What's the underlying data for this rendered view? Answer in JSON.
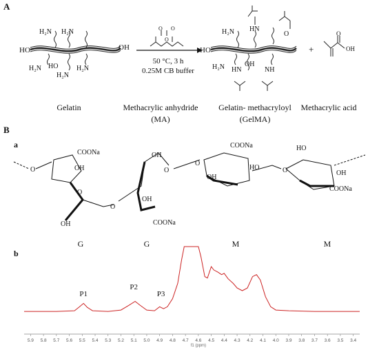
{
  "panel_a": {
    "label": "A",
    "reaction_conditions": [
      "50 °C, 3 h",
      "0.25M CB buffer"
    ],
    "plus_sign": "+",
    "gelatin_groups": {
      "ho_left": "HO",
      "oh_right": "OH",
      "ho_mid": "HO",
      "amine": "H₂N",
      "amine_b": "H₂N"
    },
    "gelma_groups": {
      "ho_left": "HO",
      "hn": "HN",
      "nh": "NH",
      "o": "O",
      "oh": "OH",
      "amine": "H₂N"
    },
    "captions": {
      "gelatin": "Gelatin",
      "ma_1": "Methacrylic anhydride",
      "ma_2": "(MA)",
      "gelma_1": "Gelatin- methacryloyl",
      "gelma_2": "(GelMA)",
      "acid": "Methacrylic acid"
    }
  },
  "panel_b": {
    "label": "B",
    "sub_a": "a",
    "sub_b": "b",
    "groups": {
      "coona": "COONa",
      "oh": "OH",
      "ho": "HO",
      "o": "O"
    },
    "residues": [
      "G",
      "G",
      "M",
      "M"
    ]
  },
  "chart_data": {
    "type": "line",
    "title": "",
    "xlabel": "f1 (ppm)",
    "ylabel": "",
    "x_reversed": true,
    "xlim": [
      5.95,
      3.35
    ],
    "ticks": [
      "5.9",
      "5.8",
      "5.7",
      "5.6",
      "5.5",
      "5.4",
      "5.3",
      "5.2",
      "5.1",
      "5.0",
      "4.9",
      "4.8",
      "4.7",
      "4.6",
      "4.5",
      "4.4",
      "4.3",
      "4.2",
      "4.1",
      "4.0",
      "3.9",
      "3.8",
      "3.7",
      "3.6",
      "3.5",
      "3.4"
    ],
    "peak_labels": [
      {
        "text": "P1",
        "ppm": 5.49
      },
      {
        "text": "P2",
        "ppm": 5.1
      },
      {
        "text": "P3",
        "ppm": 4.89
      }
    ],
    "series": [
      {
        "color": "#cc2222",
        "points": [
          [
            5.95,
            0.03
          ],
          [
            5.7,
            0.03
          ],
          [
            5.56,
            0.04
          ],
          [
            5.52,
            0.1
          ],
          [
            5.49,
            0.15
          ],
          [
            5.46,
            0.09
          ],
          [
            5.42,
            0.04
          ],
          [
            5.3,
            0.03
          ],
          [
            5.2,
            0.05
          ],
          [
            5.14,
            0.12
          ],
          [
            5.09,
            0.18
          ],
          [
            5.05,
            0.12
          ],
          [
            5.0,
            0.05
          ],
          [
            4.94,
            0.04
          ],
          [
            4.9,
            0.1
          ],
          [
            4.87,
            0.07
          ],
          [
            4.84,
            0.1
          ],
          [
            4.8,
            0.22
          ],
          [
            4.76,
            0.45
          ],
          [
            4.73,
            0.8
          ],
          [
            4.71,
            1.0
          ],
          [
            4.6,
            1.0
          ],
          [
            4.58,
            0.85
          ],
          [
            4.55,
            0.55
          ],
          [
            4.53,
            0.53
          ],
          [
            4.5,
            0.7
          ],
          [
            4.48,
            0.65
          ],
          [
            4.45,
            0.62
          ],
          [
            4.42,
            0.58
          ],
          [
            4.4,
            0.6
          ],
          [
            4.37,
            0.52
          ],
          [
            4.33,
            0.45
          ],
          [
            4.3,
            0.38
          ],
          [
            4.26,
            0.34
          ],
          [
            4.22,
            0.38
          ],
          [
            4.18,
            0.55
          ],
          [
            4.15,
            0.58
          ],
          [
            4.12,
            0.5
          ],
          [
            4.08,
            0.25
          ],
          [
            4.04,
            0.1
          ],
          [
            4.0,
            0.05
          ],
          [
            3.9,
            0.04
          ],
          [
            3.7,
            0.03
          ],
          [
            3.35,
            0.03
          ]
        ]
      }
    ]
  }
}
